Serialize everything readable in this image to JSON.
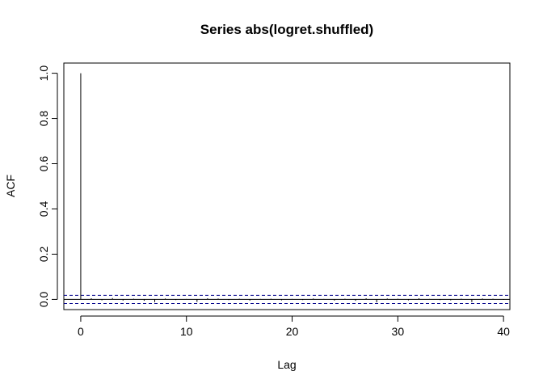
{
  "chart_data": {
    "type": "bar",
    "title": "Series  abs(logret.shuffled)",
    "xlabel": "Lag",
    "ylabel": "ACF",
    "xlim": [
      -1.6,
      40.6
    ],
    "ylim": [
      -0.045,
      1.045
    ],
    "x_ticks": [
      0,
      10,
      20,
      30,
      40
    ],
    "x_tick_labels": [
      "0",
      "10",
      "20",
      "30",
      "40"
    ],
    "y_ticks": [
      0.0,
      0.2,
      0.4,
      0.6,
      0.8,
      1.0
    ],
    "y_tick_labels": [
      "0.0",
      "0.2",
      "0.4",
      "0.6",
      "0.8",
      "1.0"
    ],
    "lags": [
      0,
      1,
      2,
      3,
      4,
      5,
      6,
      7,
      8,
      9,
      10,
      11,
      12,
      13,
      14,
      15,
      16,
      17,
      18,
      19,
      20,
      21,
      22,
      23,
      24,
      25,
      26,
      27,
      28,
      29,
      30,
      31,
      32,
      33,
      34,
      35,
      36,
      37,
      38,
      39,
      40
    ],
    "acf": [
      1.0,
      0.005,
      -0.004,
      0.006,
      -0.005,
      0.003,
      -0.006,
      -0.012,
      0.004,
      -0.003,
      0.002,
      -0.011,
      0.005,
      0.004,
      -0.003,
      0.003,
      -0.005,
      0.002,
      0.003,
      -0.004,
      0.002,
      -0.003,
      0.004,
      0.002,
      -0.005,
      0.003,
      -0.006,
      0.005,
      -0.013,
      0.004,
      0.003,
      -0.004,
      0.005,
      0.002,
      -0.003,
      -0.004,
      0.003,
      -0.012,
      0.004,
      0.003,
      -0.002
    ],
    "conf_band": [
      -0.018,
      0.018
    ],
    "colors": {
      "bars": "#000000",
      "conf_band": "#00008B",
      "zero_line": "#000000"
    }
  }
}
